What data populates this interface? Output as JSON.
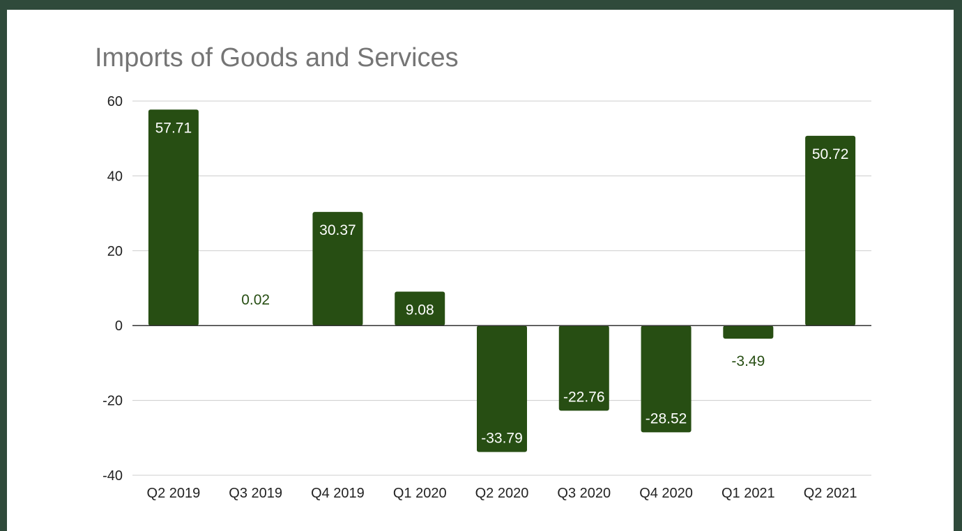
{
  "chart_data": {
    "type": "bar",
    "title": "Imports of Goods and Services",
    "xlabel": "",
    "ylabel": "",
    "categories": [
      "Q2 2019",
      "Q3 2019",
      "Q4 2019",
      "Q1 2020",
      "Q2 2020",
      "Q3 2020",
      "Q4 2020",
      "Q1 2021",
      "Q2 2021"
    ],
    "values": [
      57.71,
      0.02,
      30.37,
      9.08,
      -33.79,
      -22.76,
      -28.52,
      -3.49,
      50.72
    ],
    "data_labels": [
      "57.71",
      "0.02",
      "30.37",
      "9.08",
      "-33.79",
      "-22.76",
      "-28.52",
      "-3.49",
      "50.72"
    ],
    "ylim": [
      -40,
      60
    ],
    "yticks": [
      -40,
      -20,
      0,
      20,
      40,
      60
    ],
    "grid": true,
    "legend": "none",
    "bar_color": "#274e13",
    "frame_color": "#2f4a3b"
  }
}
